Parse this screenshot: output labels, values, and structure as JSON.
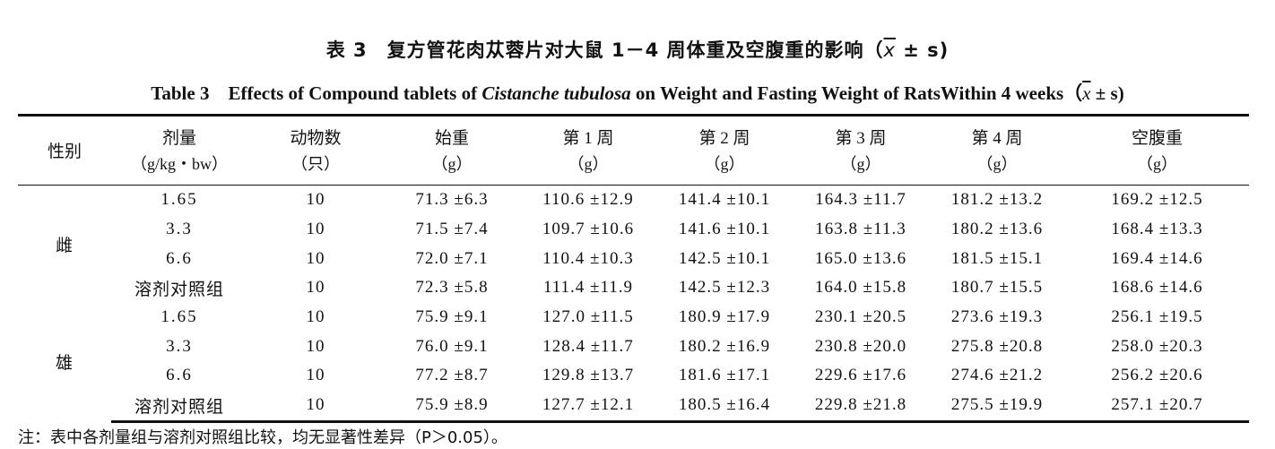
{
  "title_cn": {
    "prefix": "表 3　复方管花肉苁蓉片对大鼠 1－4 周体重及空腹重的影响（",
    "xbar": "x",
    "suffix": " ± s)"
  },
  "title_en": {
    "prefix": "Table 3　Effects of Compound tablets of ",
    "italic": "Cistanche tubulosa",
    "middle": " on Weight and Fasting Weight of RatsWithin 4 weeks（",
    "xbar": "x",
    "suffix": " ± s)"
  },
  "headers": [
    {
      "label": "性别",
      "unit": ""
    },
    {
      "label": "剂量",
      "unit": "（g/kg・bw）"
    },
    {
      "label": "动物数",
      "unit": "（只）"
    },
    {
      "label": "始重",
      "unit": "（g）"
    },
    {
      "label": "第 1 周",
      "unit": "（g）"
    },
    {
      "label": "第 2 周",
      "unit": "（g）"
    },
    {
      "label": "第 3 周",
      "unit": "（g）"
    },
    {
      "label": "第 4 周",
      "unit": "（g）"
    },
    {
      "label": "空腹重",
      "unit": "（g）"
    }
  ],
  "groups": [
    {
      "sex": "雌",
      "rows": [
        [
          "1.65",
          "10",
          "71.3 ±6.3",
          "110.6 ±12.9",
          "141.4 ±10.1",
          "164.3 ±11.7",
          "181.2 ±13.2",
          "169.2 ±12.5"
        ],
        [
          "3.3",
          "10",
          "71.5 ±7.4",
          "109.7 ±10.6",
          "141.6 ±10.1",
          "163.8 ±11.3",
          "180.2 ±13.6",
          "168.4 ±13.3"
        ],
        [
          "6.6",
          "10",
          "72.0 ±7.1",
          "110.4 ±10.3",
          "142.5 ±10.1",
          "165.0 ±13.6",
          "181.5 ±15.1",
          "169.4 ±14.6"
        ],
        [
          "溶剂对照组",
          "10",
          "72.3 ±5.8",
          "111.4 ±11.9",
          "142.5 ±12.3",
          "164.0 ±15.8",
          "180.7 ±15.5",
          "168.6 ±14.6"
        ]
      ]
    },
    {
      "sex": "雄",
      "rows": [
        [
          "1.65",
          "10",
          "75.9 ±9.1",
          "127.0 ±11.5",
          "180.9 ±17.9",
          "230.1 ±20.5",
          "273.6 ±19.3",
          "256.1 ±19.5"
        ],
        [
          "3.3",
          "10",
          "76.0 ±9.1",
          "128.4 ±11.7",
          "180.2 ±16.9",
          "230.8 ±20.0",
          "275.8 ±20.8",
          "258.0 ±20.3"
        ],
        [
          "6.6",
          "10",
          "77.2 ±8.7",
          "129.8 ±13.7",
          "181.6 ±17.1",
          "229.6 ±17.6",
          "274.6 ±21.2",
          "256.2 ±20.6"
        ],
        [
          "溶剂对照组",
          "10",
          "75.9 ±8.9",
          "127.7 ±12.1",
          "180.5 ±16.4",
          "229.8 ±21.8",
          "275.5 ±19.9",
          "257.1 ±20.7"
        ]
      ]
    }
  ],
  "note": "注：表中各剂量组与溶剂对照组比较，均无显著性差异（P＞0.05）。"
}
